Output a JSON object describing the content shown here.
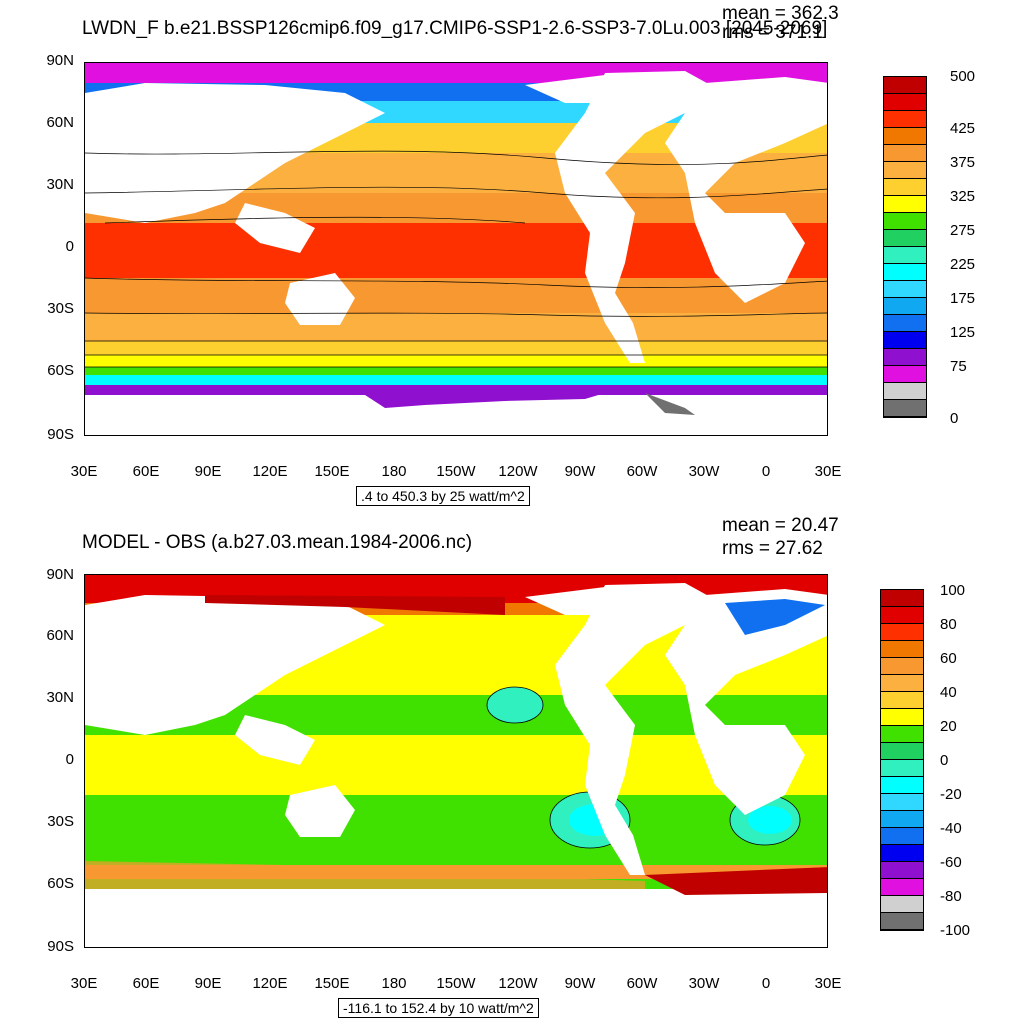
{
  "panels": [
    {
      "title": "LWDN_F b.e21.BSSP126cmip6.f09_g17.CMIP6-SSP1-2.6-SSP3-7.0Lu.003 [2045-2069]",
      "mean_text": "mean = 362.3",
      "rms_text": "rms = 371.1",
      "range_text": ".4 to 450.3 by 25 watt/m^2",
      "lat_ticks": [
        "90N",
        "60N",
        "30N",
        "0",
        "30S",
        "60S",
        "90S"
      ],
      "lon_ticks": [
        "30E",
        "60E",
        "90E",
        "120E",
        "150E",
        "180",
        "150W",
        "120W",
        "90W",
        "60W",
        "30W",
        "0",
        "30E"
      ],
      "colorbar": {
        "colors": [
          "#c00000",
          "#e00000",
          "#ff3000",
          "#f07800",
          "#f89830",
          "#fbb040",
          "#fdd030",
          "#ffff00",
          "#40e000",
          "#20d060",
          "#30f0c0",
          "#00ffff",
          "#30d8ff",
          "#10a8f0",
          "#1070f0",
          "#0000f0",
          "#9010d0",
          "#e010e0",
          "#d0d0d0",
          "#707070"
        ],
        "labels": [
          "500",
          "425",
          "375",
          "325",
          "275",
          "225",
          "175",
          "125",
          "75",
          "0"
        ]
      }
    },
    {
      "title": "MODEL - OBS (a.b27.03.mean.1984-2006.nc)",
      "mean_text": "mean = 20.47",
      "rms_text": "rms = 27.62",
      "range_text": "-116.1 to 152.4 by 10 watt/m^2",
      "lat_ticks": [
        "90N",
        "60N",
        "30N",
        "0",
        "30S",
        "60S",
        "90S"
      ],
      "lon_ticks": [
        "30E",
        "60E",
        "90E",
        "120E",
        "150E",
        "180",
        "150W",
        "120W",
        "90W",
        "60W",
        "30W",
        "0",
        "30E"
      ],
      "colorbar": {
        "colors": [
          "#c00000",
          "#e00000",
          "#ff3000",
          "#f07800",
          "#f89830",
          "#fbb040",
          "#fdd030",
          "#ffff00",
          "#40e000",
          "#20d060",
          "#30f0c0",
          "#00ffff",
          "#30d8ff",
          "#10a8f0",
          "#1070f0",
          "#0000f0",
          "#9010d0",
          "#e010e0",
          "#d0d0d0",
          "#707070"
        ],
        "labels": [
          "100",
          "80",
          "60",
          "40",
          "20",
          "0",
          "-20",
          "-40",
          "-60",
          "-80",
          "-100"
        ]
      }
    }
  ]
}
